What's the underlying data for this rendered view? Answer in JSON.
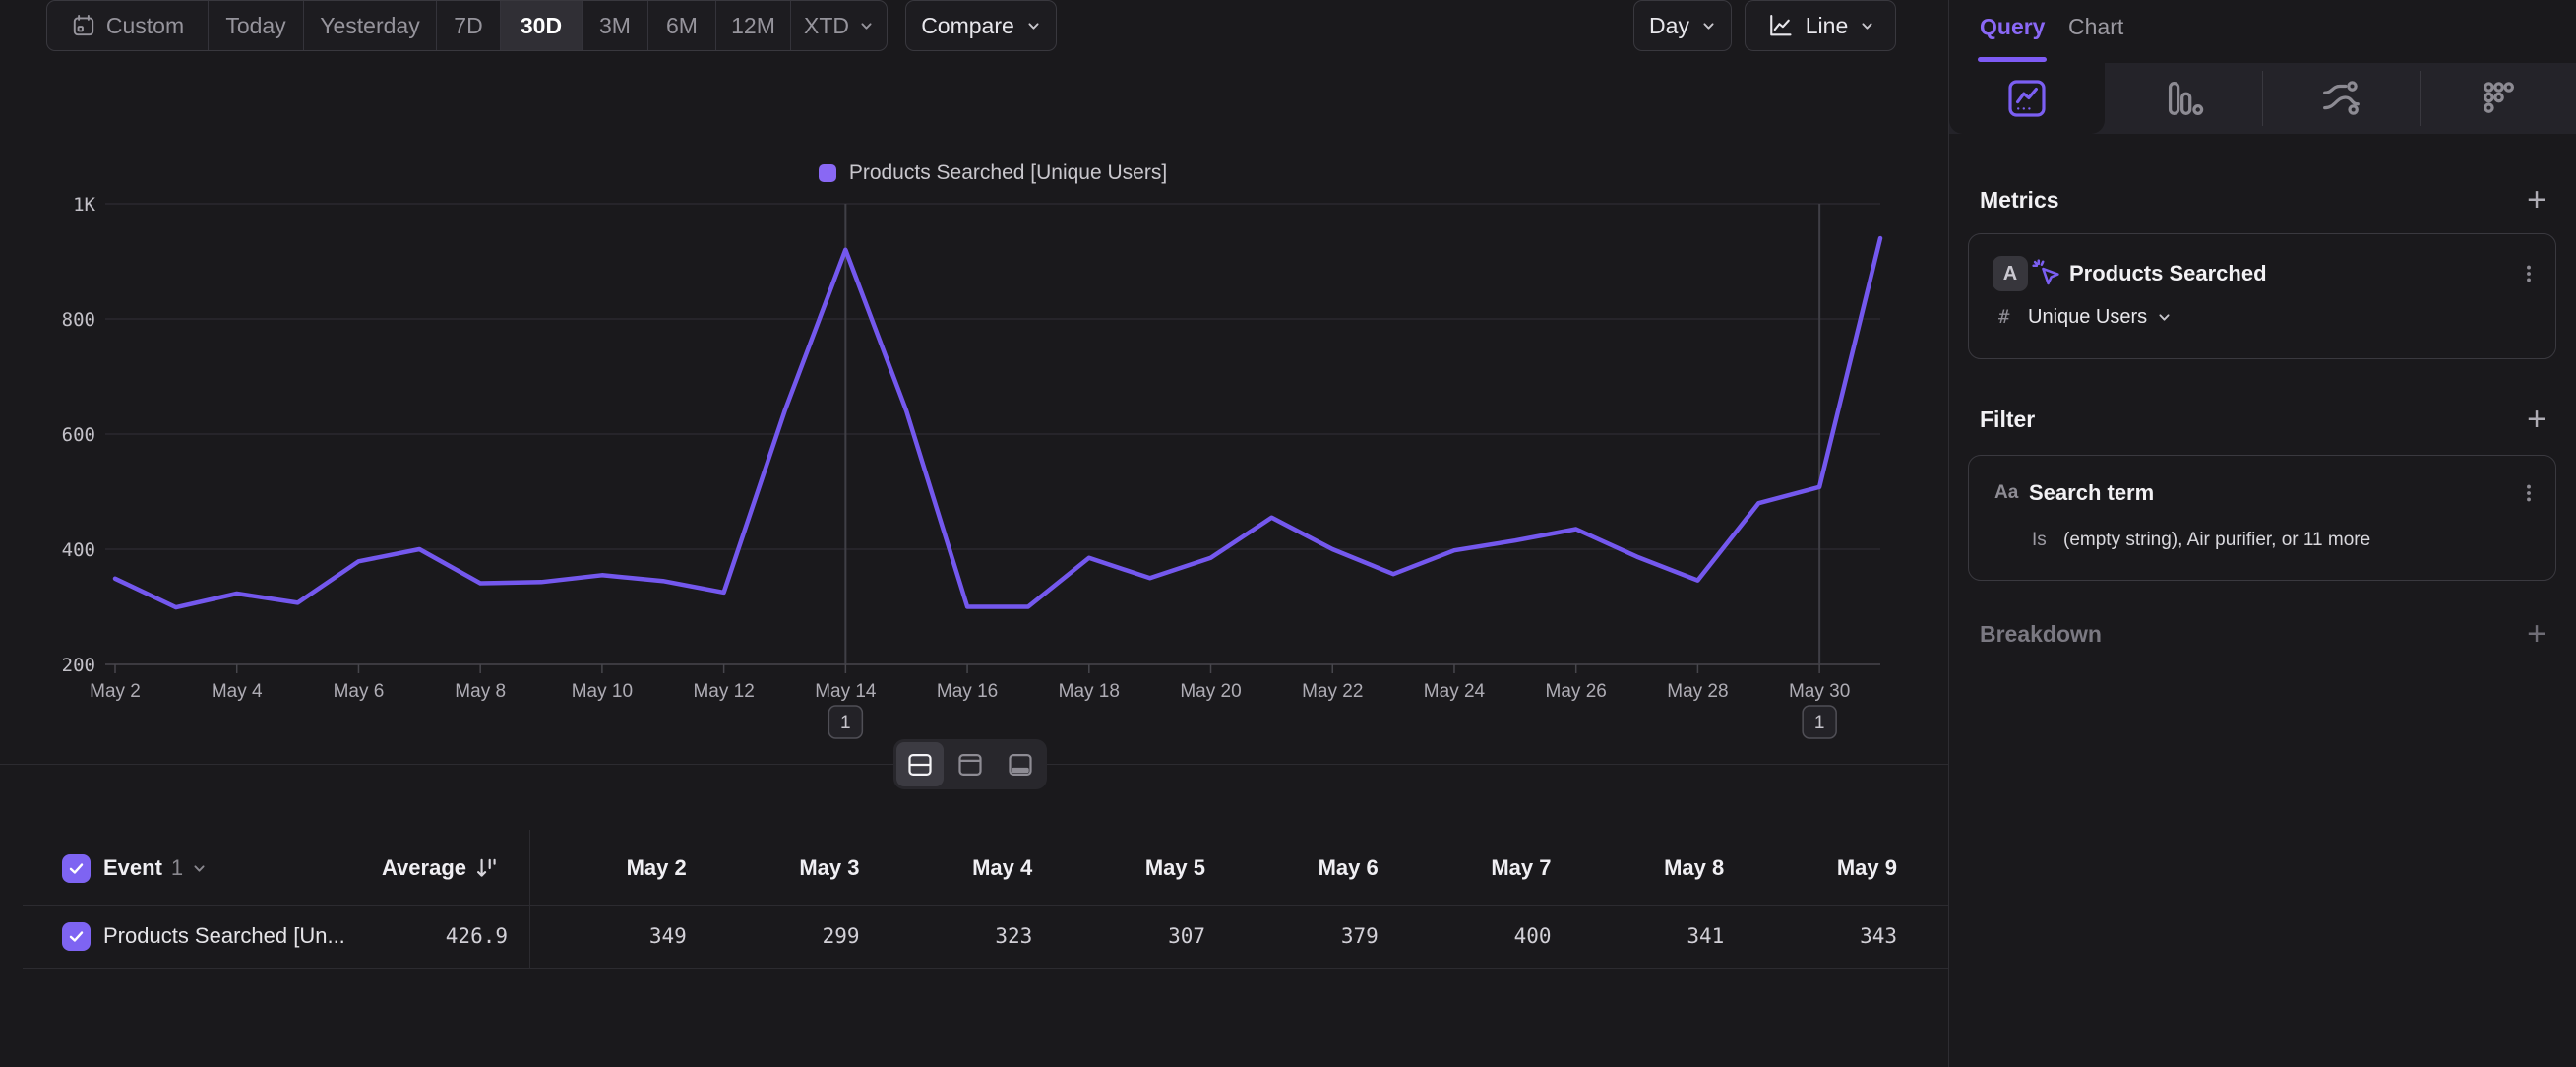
{
  "toolbar": {
    "ranges": [
      {
        "label": "Custom"
      },
      {
        "label": "Today"
      },
      {
        "label": "Yesterday"
      },
      {
        "label": "7D"
      },
      {
        "label": "30D"
      },
      {
        "label": "3M"
      },
      {
        "label": "6M"
      },
      {
        "label": "12M"
      },
      {
        "label": "XTD"
      }
    ],
    "selected_range": "30D",
    "compare_label": "Compare",
    "granularity_label": "Day",
    "chart_type_label": "Line"
  },
  "legend": {
    "label": "Products Searched [Unique Users]",
    "swatch_color": "#8968f4"
  },
  "chart_data": {
    "type": "line",
    "title": "Products Searched [Unique Users]",
    "x": [
      "May 2",
      "May 3",
      "May 4",
      "May 5",
      "May 6",
      "May 7",
      "May 8",
      "May 9",
      "May 10",
      "May 11",
      "May 12",
      "May 13",
      "May 14",
      "May 15",
      "May 16",
      "May 17",
      "May 18",
      "May 19",
      "May 20",
      "May 21",
      "May 22",
      "May 23",
      "May 24",
      "May 25",
      "May 26",
      "May 27",
      "May 28",
      "May 29",
      "May 30",
      "May 31"
    ],
    "values": [
      349,
      299,
      323,
      307,
      379,
      400,
      341,
      343,
      355,
      345,
      325,
      640,
      920,
      640,
      300,
      300,
      385,
      350,
      385,
      455,
      400,
      357,
      398,
      415,
      435,
      387,
      346,
      480,
      508,
      940
    ],
    "series_color": "#7458ee",
    "ylim": [
      200,
      1000
    ],
    "y_ticks": [
      {
        "value": 1000,
        "label": "1K"
      },
      {
        "value": 800,
        "label": "800"
      },
      {
        "value": 600,
        "label": "600"
      },
      {
        "value": 400,
        "label": "400"
      },
      {
        "value": 200,
        "label": "200"
      }
    ],
    "x_tick_every": 2,
    "grid": "horizontal",
    "legend_position": "top-center",
    "annotations": [
      {
        "x": "May 14",
        "label": "1"
      },
      {
        "x": "May 30",
        "label": "1"
      }
    ]
  },
  "layout_switcher": {
    "selected": "split-view",
    "options": [
      "split-view",
      "chart-view",
      "table-view"
    ]
  },
  "table": {
    "event_header": "Event",
    "event_count": "1",
    "average_header": "Average",
    "columns": [
      "May 2",
      "May 3",
      "May 4",
      "May 5",
      "May 6",
      "May 7",
      "May 8",
      "May 9"
    ],
    "rows": [
      {
        "label": "Products Searched [Un...",
        "average": "426.9",
        "values": [
          "349",
          "299",
          "323",
          "307",
          "379",
          "400",
          "341",
          "343"
        ],
        "checked": true
      }
    ]
  },
  "sidebar": {
    "tabs": [
      {
        "label": "Query",
        "active": true
      },
      {
        "label": "Chart",
        "active": false
      }
    ],
    "report_tabs": [
      "insights",
      "funnels",
      "flows",
      "retention"
    ],
    "selected_report_tab": "insights",
    "metrics": {
      "heading": "Metrics",
      "items": [
        {
          "letter": "A",
          "name": "Products Searched",
          "aggregation_prefix": "#",
          "aggregation": "Unique Users"
        }
      ]
    },
    "filter": {
      "heading": "Filter",
      "items": [
        {
          "type_icon": "Aa",
          "name": "Search term",
          "operator": "Is",
          "value": "(empty string), Air purifier, or 11 more"
        }
      ]
    },
    "breakdown": {
      "heading": "Breakdown"
    }
  },
  "colors": {
    "background": "#1a191c",
    "accent_purple": "#7e5bf5",
    "line_color": "#7458ee",
    "gridline": "#2a292e",
    "axis": "#47464c",
    "annotation_line": "#403f46"
  }
}
